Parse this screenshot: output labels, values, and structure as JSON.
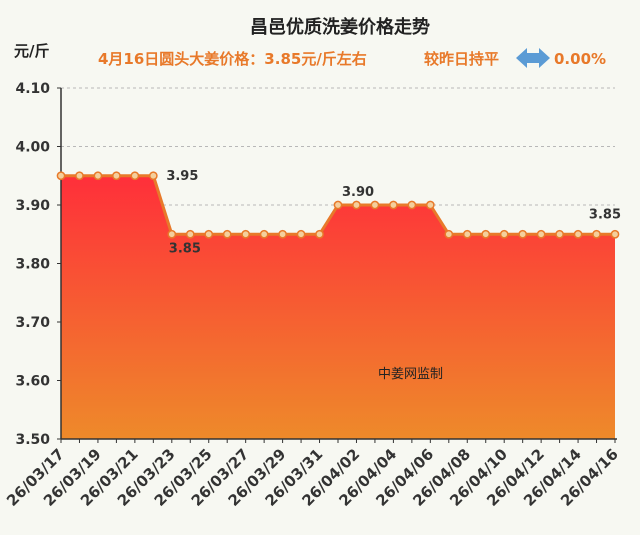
{
  "chart_data": {
    "type": "area",
    "title": "昌邑优质洗姜价格走势",
    "subtitle": {
      "price_text": "4月16日圆头大姜价格：3.85元/斤左右",
      "compare_text": "较昨日持平",
      "change_text": "0.00%"
    },
    "ylabel": "元/斤",
    "ylim": [
      3.5,
      4.1
    ],
    "yticks": [
      "3.50",
      "3.60",
      "3.70",
      "3.80",
      "3.90",
      "4.00",
      "4.10"
    ],
    "x": [
      "26/03/17",
      "26/03/18",
      "26/03/19",
      "26/03/20",
      "26/03/21",
      "26/03/22",
      "26/03/23",
      "26/03/24",
      "26/03/25",
      "26/03/26",
      "26/03/27",
      "26/03/28",
      "26/03/29",
      "26/03/30",
      "26/03/31",
      "26/04/01",
      "26/04/02",
      "26/04/03",
      "26/04/04",
      "26/04/05",
      "26/04/06",
      "26/04/07",
      "26/04/08",
      "26/04/09",
      "26/04/10",
      "26/04/11",
      "26/04/12",
      "26/04/13",
      "26/04/14",
      "26/04/15",
      "26/04/16"
    ],
    "xtick_labels": [
      "26/03/17",
      "26/03/19",
      "26/03/21",
      "26/03/23",
      "26/03/25",
      "26/03/27",
      "26/03/29",
      "26/03/31",
      "26/04/02",
      "26/04/04",
      "26/04/06",
      "26/04/08",
      "26/04/10",
      "26/04/12",
      "26/04/14",
      "26/04/16"
    ],
    "series": [
      {
        "name": "昌邑优质洗姜价格",
        "values": [
          3.95,
          3.95,
          3.95,
          3.95,
          3.95,
          3.95,
          3.85,
          3.85,
          3.85,
          3.85,
          3.85,
          3.85,
          3.85,
          3.85,
          3.85,
          3.9,
          3.9,
          3.9,
          3.9,
          3.9,
          3.9,
          3.85,
          3.85,
          3.85,
          3.85,
          3.85,
          3.85,
          3.85,
          3.85,
          3.85,
          3.85
        ]
      }
    ],
    "data_labels": [
      {
        "index": 5,
        "text": "3.95"
      },
      {
        "index": 6,
        "text": "3.85"
      },
      {
        "index": 15,
        "text": "3.90"
      },
      {
        "index": 30,
        "text": "3.85"
      }
    ],
    "annotation": "中姜网监制",
    "grid": true,
    "colors": {
      "line": "#e8792a",
      "fill_top": "#ff2f3a",
      "fill_bottom": "#ee8a2a",
      "marker_fill": "#f4cf9c",
      "accent": "#e8792a",
      "arrow": "#5b9bd5"
    }
  }
}
